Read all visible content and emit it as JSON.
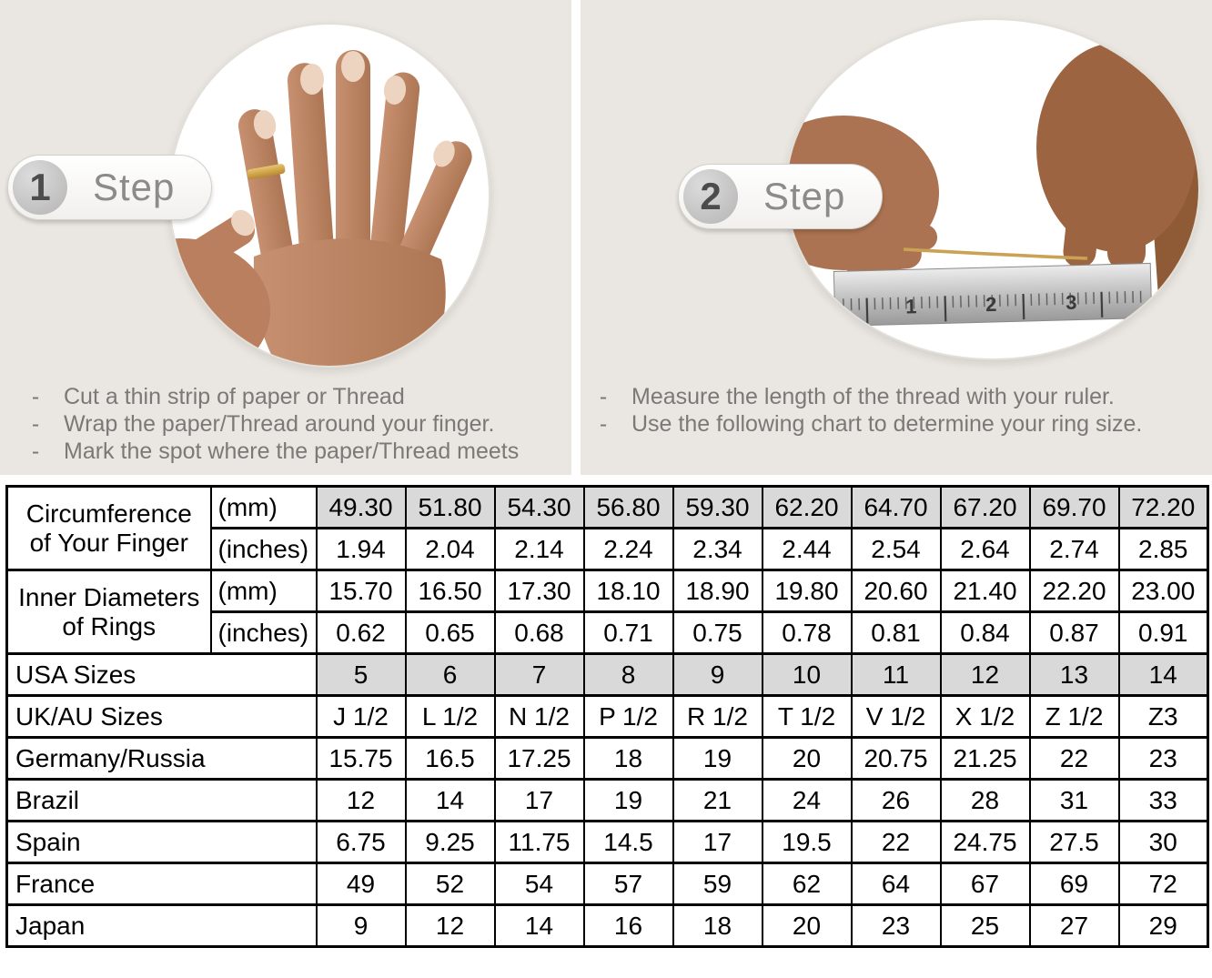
{
  "bullet_marker": "-",
  "steps": [
    {
      "number": "1",
      "label": "Step",
      "bullets": [
        "Cut a thin strip of paper or Thread",
        "Wrap the paper/Thread around your finger.",
        "Mark the spot where the paper/Thread meets"
      ]
    },
    {
      "number": "2",
      "label": "Step",
      "bullets": [
        "Measure the length of the thread with your ruler.",
        "Use the following chart to determine your ring size."
      ]
    }
  ],
  "ruler_numbers": [
    "1",
    "2",
    "3"
  ],
  "colors": {
    "panel_beige": "#eae6e1",
    "shaded_cell_gray": "#d9d9d9",
    "table_border": "#000000",
    "instruction_text_gray": "#7b7977",
    "badge_text_gray": "#8b8b89",
    "gold_ring": "#d7a94f",
    "gold_thread": "#c9a254",
    "skin_light": "#bd8565",
    "skin_dark": "#8f5a36",
    "ruler_metal": "#c6c6c6"
  },
  "table": {
    "rows": [
      {
        "type": "group-start",
        "label": "Circumference\nof Your Finger",
        "unit": "(mm)",
        "shaded": true,
        "values": [
          "49.30",
          "51.80",
          "54.30",
          "56.80",
          "59.30",
          "62.20",
          "64.70",
          "67.20",
          "69.70",
          "72.20"
        ]
      },
      {
        "type": "group-cont",
        "unit": "(inches)",
        "shaded": false,
        "values": [
          "1.94",
          "2.04",
          "2.14",
          "2.24",
          "2.34",
          "2.44",
          "2.54",
          "2.64",
          "2.74",
          "2.85"
        ]
      },
      {
        "type": "group-start",
        "label": "Inner Diameters\nof Rings",
        "unit": "(mm)",
        "shaded": false,
        "values": [
          "15.70",
          "16.50",
          "17.30",
          "18.10",
          "18.90",
          "19.80",
          "20.60",
          "21.40",
          "22.20",
          "23.00"
        ]
      },
      {
        "type": "group-cont",
        "unit": "(inches)",
        "shaded": false,
        "values": [
          "0.62",
          "0.65",
          "0.68",
          "0.71",
          "0.75",
          "0.78",
          "0.81",
          "0.84",
          "0.87",
          "0.91"
        ]
      },
      {
        "type": "simple",
        "label": "USA Sizes",
        "shaded": true,
        "values": [
          "5",
          "6",
          "7",
          "8",
          "9",
          "10",
          "11",
          "12",
          "13",
          "14"
        ]
      },
      {
        "type": "simple",
        "label": "UK/AU Sizes",
        "shaded": false,
        "values": [
          "J 1/2",
          "L 1/2",
          "N 1/2",
          "P 1/2",
          "R 1/2",
          "T 1/2",
          "V 1/2",
          "X 1/2",
          "Z 1/2",
          "Z3"
        ]
      },
      {
        "type": "simple",
        "label": "Germany/Russia",
        "shaded": false,
        "values": [
          "15.75",
          "16.5",
          "17.25",
          "18",
          "19",
          "20",
          "20.75",
          "21.25",
          "22",
          "23"
        ]
      },
      {
        "type": "simple",
        "label": "Brazil",
        "shaded": false,
        "values": [
          "12",
          "14",
          "17",
          "19",
          "21",
          "24",
          "26",
          "28",
          "31",
          "33"
        ]
      },
      {
        "type": "simple",
        "label": "Spain",
        "shaded": false,
        "values": [
          "6.75",
          "9.25",
          "11.75",
          "14.5",
          "17",
          "19.5",
          "22",
          "24.75",
          "27.5",
          "30"
        ]
      },
      {
        "type": "simple",
        "label": "France",
        "shaded": false,
        "values": [
          "49",
          "52",
          "54",
          "57",
          "59",
          "62",
          "64",
          "67",
          "69",
          "72"
        ]
      },
      {
        "type": "simple",
        "label": "Japan",
        "shaded": false,
        "values": [
          "9",
          "12",
          "14",
          "16",
          "18",
          "20",
          "23",
          "25",
          "27",
          "29"
        ]
      }
    ]
  }
}
